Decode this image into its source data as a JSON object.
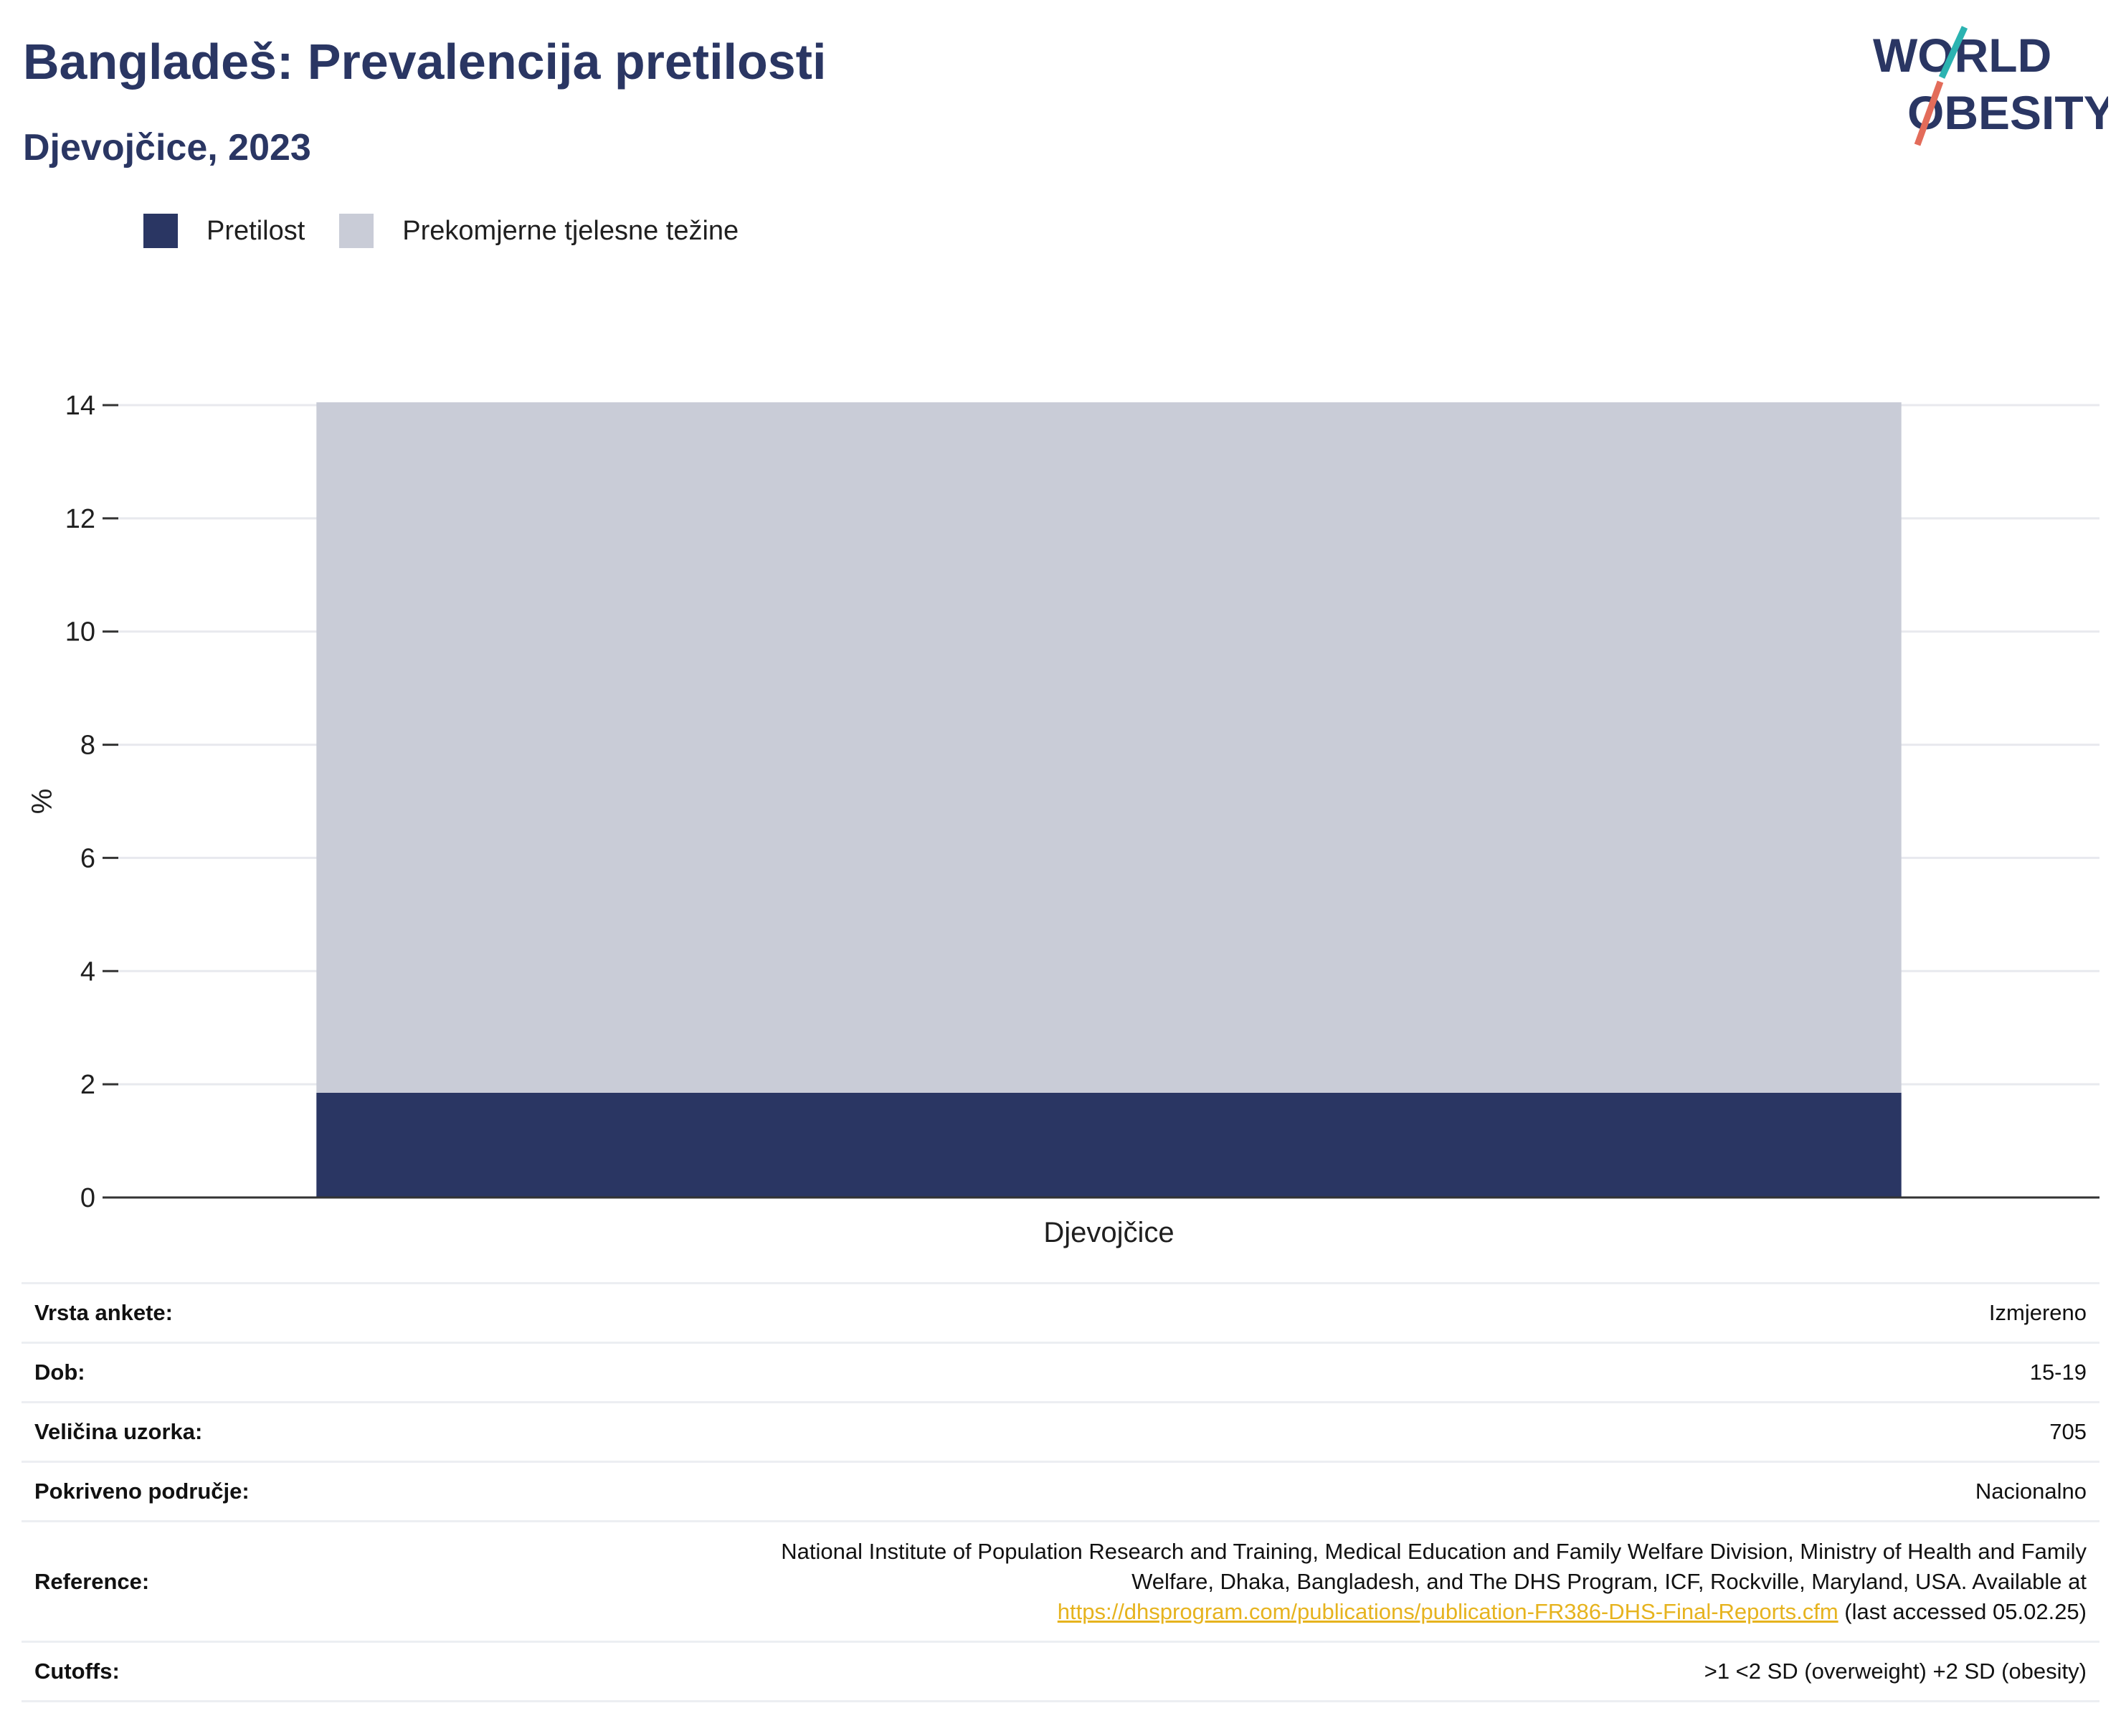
{
  "header": {
    "title": "Bangladeš: Prevalencija pretilosti",
    "subtitle": "Djevojčice, 2023"
  },
  "logo": {
    "line1": "WORLD",
    "line2": "OBESITY",
    "accent1": "#2bb3b1",
    "accent2": "#e36c5a"
  },
  "legend": [
    {
      "label": "Pretilost",
      "color": "#2a3663"
    },
    {
      "label": "Prekomjerne tjelesne težine",
      "color": "#c9ccd7"
    }
  ],
  "chart_data": {
    "type": "bar",
    "stacked": true,
    "categories": [
      "Djevojčice"
    ],
    "series": [
      {
        "name": "Pretilost",
        "values": [
          1.85
        ],
        "color": "#2a3663"
      },
      {
        "name": "Prekomjerne tjelesne težine",
        "values": [
          12.2
        ],
        "color": "#c9ccd7"
      }
    ],
    "ylabel": "%",
    "ylim": [
      0,
      14
    ],
    "yticks": [
      0,
      2,
      4,
      6,
      8,
      10,
      12,
      14
    ],
    "grid": true
  },
  "meta": {
    "rows": [
      {
        "key": "Vrsta ankete:",
        "value": "Izmjereno"
      },
      {
        "key": "Dob:",
        "value": "15-19"
      },
      {
        "key": "Veličina uzorka:",
        "value": "705"
      },
      {
        "key": "Pokriveno područje:",
        "value": "Nacionalno"
      }
    ],
    "reference": {
      "key": "Reference:",
      "line1": "National Institute of Population Research and Training, Medical Education and Family Welfare Division, Ministry of Health and Family",
      "line2": "Welfare, Dhaka, Bangladesh, and The DHS Program, ICF, Rockville, Maryland, USA. Available at",
      "link": "https://dhsprogram.com/publications/publication-FR386-DHS-Final-Reports.cfm",
      "suffix": " (last accessed 05.02.25)"
    },
    "cutoffs": {
      "key": "Cutoffs:",
      "value": ">1 <2 SD (overweight) +2 SD (obesity)"
    }
  }
}
